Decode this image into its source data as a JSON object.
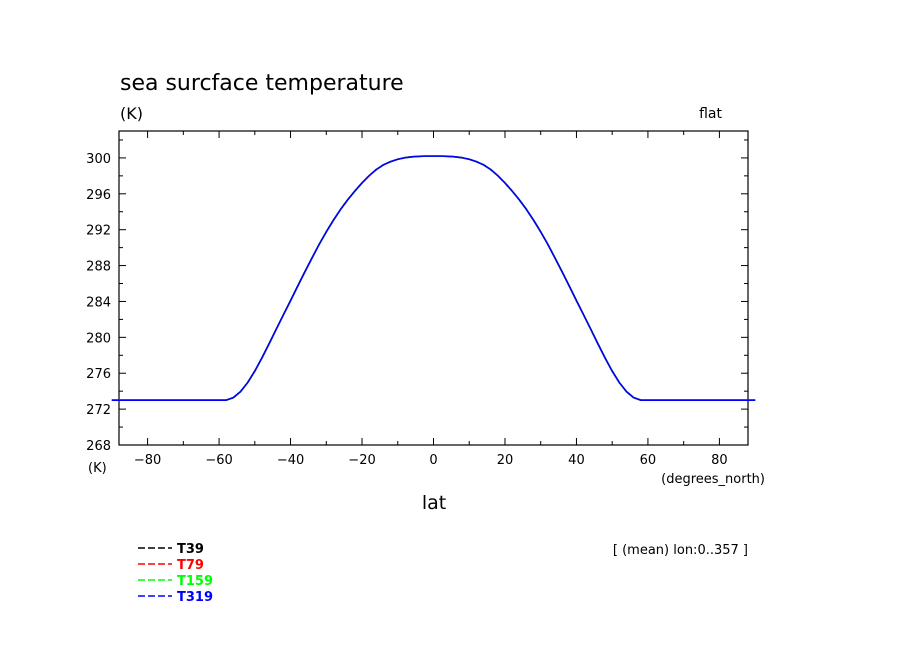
{
  "chart_data": {
    "type": "line",
    "title": "sea surcface temperature",
    "ylabel_unit": "(K)",
    "top_right_note": "flat",
    "bottom_left_unit": "(K)",
    "xlabel_unit": "(degrees_north)",
    "xlabel": "lat",
    "mean_note": "[ (mean) lon:0..357 ]",
    "xlim": [
      -88,
      88
    ],
    "ylim": [
      268,
      303
    ],
    "x_ticks": [
      -80,
      -60,
      -40,
      -20,
      0,
      20,
      40,
      60,
      80
    ],
    "x_tick_labels": [
      "−80",
      "−60",
      "−40",
      "−20",
      "0",
      "20",
      "40",
      "60",
      "80"
    ],
    "y_ticks": [
      268,
      272,
      276,
      280,
      284,
      288,
      292,
      296,
      300
    ],
    "y_tick_labels": [
      "268",
      "272",
      "276",
      "280",
      "284",
      "288",
      "292",
      "296",
      "300"
    ],
    "legend_position": "bottom-left, below plot",
    "x": [
      -90,
      -80,
      -70,
      -60,
      -58,
      -56,
      -54,
      -52,
      -50,
      -48,
      -46,
      -44,
      -42,
      -40,
      -38,
      -36,
      -34,
      -32,
      -30,
      -28,
      -26,
      -24,
      -22,
      -20,
      -18,
      -16,
      -14,
      -12,
      -10,
      -8,
      -6,
      -4,
      -2,
      0,
      2,
      4,
      6,
      8,
      10,
      12,
      14,
      16,
      18,
      20,
      22,
      24,
      26,
      28,
      30,
      32,
      34,
      36,
      38,
      40,
      42,
      44,
      46,
      48,
      50,
      52,
      54,
      56,
      58,
      60,
      70,
      80,
      90
    ],
    "series": [
      {
        "name": "T39",
        "color": "#000000",
        "values": [
          273,
          273,
          273,
          273,
          273,
          273.28,
          273.95,
          274.96,
          276.24,
          277.71,
          279.29,
          280.91,
          282.51,
          284.09,
          285.71,
          287.3,
          288.84,
          290.36,
          291.76,
          293.06,
          294.26,
          295.34,
          296.31,
          297.21,
          298.02,
          298.71,
          299.23,
          299.59,
          299.85,
          300.02,
          300.12,
          300.18,
          300.2,
          300.2,
          300.2,
          300.18,
          300.12,
          300.02,
          299.85,
          299.59,
          299.23,
          298.71,
          298.02,
          297.21,
          296.31,
          295.34,
          294.26,
          293.06,
          291.76,
          290.36,
          288.84,
          287.3,
          285.71,
          284.09,
          282.51,
          280.91,
          279.29,
          277.71,
          276.24,
          274.96,
          273.95,
          273.28,
          273,
          273,
          273,
          273,
          273
        ]
      },
      {
        "name": "T79",
        "color": "#ff0000",
        "values": [
          273,
          273,
          273,
          273,
          273,
          273.28,
          273.95,
          274.96,
          276.24,
          277.71,
          279.29,
          280.91,
          282.51,
          284.09,
          285.71,
          287.3,
          288.84,
          290.36,
          291.76,
          293.06,
          294.26,
          295.34,
          296.31,
          297.21,
          298.02,
          298.71,
          299.23,
          299.59,
          299.85,
          300.02,
          300.12,
          300.18,
          300.2,
          300.2,
          300.2,
          300.18,
          300.12,
          300.02,
          299.85,
          299.59,
          299.23,
          298.71,
          298.02,
          297.21,
          296.31,
          295.34,
          294.26,
          293.06,
          291.76,
          290.36,
          288.84,
          287.3,
          285.71,
          284.09,
          282.51,
          280.91,
          279.29,
          277.71,
          276.24,
          274.96,
          273.95,
          273.28,
          273,
          273,
          273,
          273,
          273
        ]
      },
      {
        "name": "T159",
        "color": "#00ff00",
        "values": [
          273,
          273,
          273,
          273,
          273,
          273.28,
          273.95,
          274.96,
          276.24,
          277.71,
          279.29,
          280.91,
          282.51,
          284.09,
          285.71,
          287.3,
          288.84,
          290.36,
          291.76,
          293.06,
          294.26,
          295.34,
          296.31,
          297.21,
          298.02,
          298.71,
          299.23,
          299.59,
          299.85,
          300.02,
          300.12,
          300.18,
          300.2,
          300.2,
          300.2,
          300.18,
          300.12,
          300.02,
          299.85,
          299.59,
          299.23,
          298.71,
          298.02,
          297.21,
          296.31,
          295.34,
          294.26,
          293.06,
          291.76,
          290.36,
          288.84,
          287.3,
          285.71,
          284.09,
          282.51,
          280.91,
          279.29,
          277.71,
          276.24,
          274.96,
          273.95,
          273.28,
          273,
          273,
          273,
          273,
          273
        ]
      },
      {
        "name": "T319",
        "color": "#0000ff",
        "values": [
          273,
          273,
          273,
          273,
          273,
          273.28,
          273.95,
          274.96,
          276.24,
          277.71,
          279.29,
          280.91,
          282.51,
          284.09,
          285.71,
          287.3,
          288.84,
          290.36,
          291.76,
          293.06,
          294.26,
          295.34,
          296.31,
          297.21,
          298.02,
          298.71,
          299.23,
          299.59,
          299.85,
          300.02,
          300.12,
          300.18,
          300.2,
          300.2,
          300.2,
          300.18,
          300.12,
          300.02,
          299.85,
          299.59,
          299.23,
          298.71,
          298.02,
          297.21,
          296.31,
          295.34,
          294.26,
          293.06,
          291.76,
          290.36,
          288.84,
          287.3,
          285.71,
          284.09,
          282.51,
          280.91,
          279.29,
          277.71,
          276.24,
          274.96,
          273.95,
          273.28,
          273,
          273,
          273,
          273,
          273
        ]
      }
    ]
  }
}
